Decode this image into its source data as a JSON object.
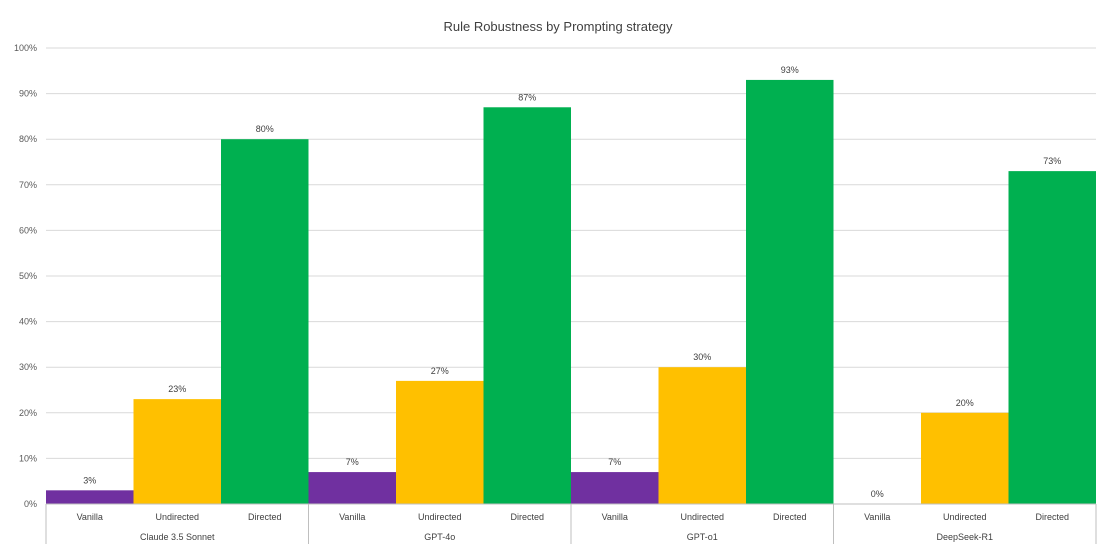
{
  "chart_data": {
    "type": "bar",
    "title": "Rule Robustness by Prompting strategy",
    "yticks": [
      "0%",
      "10%",
      "20%",
      "30%",
      "40%",
      "50%",
      "60%",
      "70%",
      "80%",
      "90%",
      "100%"
    ],
    "ylim": [
      0,
      100
    ],
    "grid": true,
    "groups": [
      {
        "name": "Claude 3.5 Sonnet",
        "bars": [
          {
            "category": "Vanilla",
            "value": 3,
            "label": "3%",
            "color": "#7030A0"
          },
          {
            "category": "Undirected",
            "value": 23,
            "label": "23%",
            "color": "#FFC000"
          },
          {
            "category": "Directed",
            "value": 80,
            "label": "80%",
            "color": "#00B050"
          }
        ]
      },
      {
        "name": "GPT-4o",
        "bars": [
          {
            "category": "Vanilla",
            "value": 7,
            "label": "7%",
            "color": "#7030A0"
          },
          {
            "category": "Undirected",
            "value": 27,
            "label": "27%",
            "color": "#FFC000"
          },
          {
            "category": "Directed",
            "value": 87,
            "label": "87%",
            "color": "#00B050"
          }
        ]
      },
      {
        "name": "GPT-o1",
        "bars": [
          {
            "category": "Vanilla",
            "value": 7,
            "label": "7%",
            "color": "#7030A0"
          },
          {
            "category": "Undirected",
            "value": 30,
            "label": "30%",
            "color": "#FFC000"
          },
          {
            "category": "Directed",
            "value": 93,
            "label": "93%",
            "color": "#00B050"
          }
        ]
      },
      {
        "name": "DeepSeek-R1",
        "bars": [
          {
            "category": "Vanilla",
            "value": 0,
            "label": "0%",
            "color": "#7030A0"
          },
          {
            "category": "Undirected",
            "value": 20,
            "label": "20%",
            "color": "#FFC000"
          },
          {
            "category": "Directed",
            "value": 73,
            "label": "73%",
            "color": "#00B050"
          }
        ]
      }
    ]
  }
}
